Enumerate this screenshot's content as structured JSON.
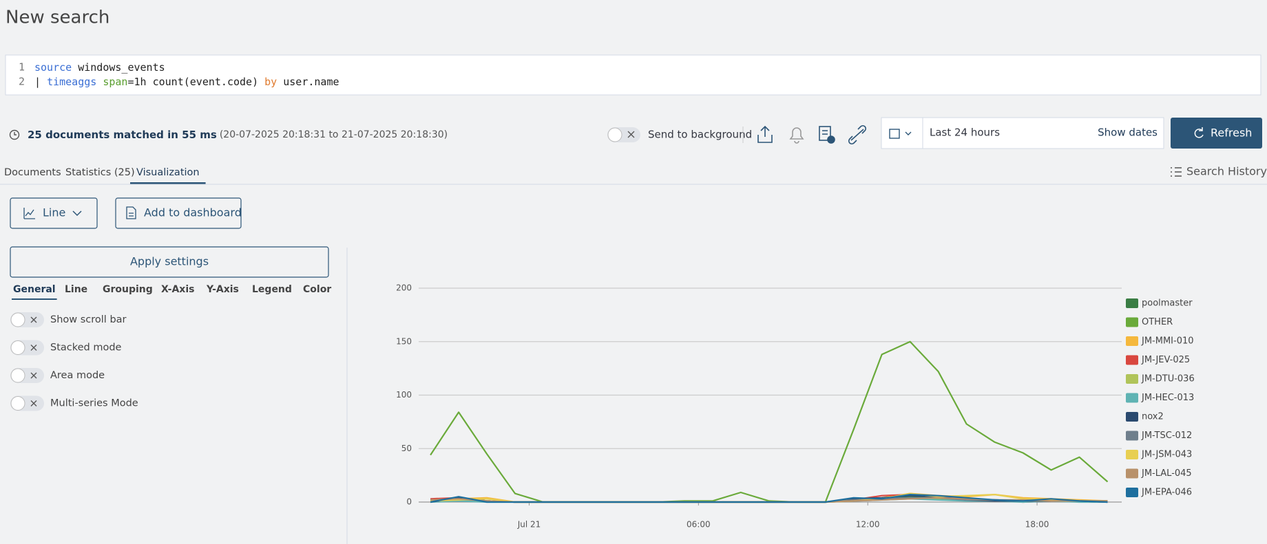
{
  "header": {
    "title": "New search"
  },
  "query": {
    "lines": [
      {
        "number": "1",
        "tokens": [
          {
            "text": "source",
            "kind": "keyword"
          },
          {
            "text": " windows_events",
            "kind": "plain"
          }
        ]
      },
      {
        "number": "2",
        "tokens": [
          {
            "text": "| ",
            "kind": "plain"
          },
          {
            "text": "timeaggs",
            "kind": "keyword"
          },
          {
            "text": " ",
            "kind": "plain"
          },
          {
            "text": "span",
            "kind": "param"
          },
          {
            "text": "=1h count(event.code) ",
            "kind": "plain"
          },
          {
            "text": "by",
            "kind": "operator"
          },
          {
            "text": " user.name",
            "kind": "plain"
          }
        ]
      }
    ]
  },
  "status": {
    "summary": "25 documents matched in 55 ms",
    "range": "(20-07-2025 20:18:31 to 21-07-2025 20:18:30)"
  },
  "toolbar": {
    "background_toggle": "Send to background",
    "time_range": "Last 24 hours",
    "show_dates": "Show dates",
    "refresh": "Refresh"
  },
  "tabs": {
    "items": [
      "Documents",
      "Statistics (25)",
      "Visualization"
    ],
    "active": 2,
    "history": "Search History"
  },
  "actions": {
    "chart_type": "Line",
    "add_to_dashboard": "Add to dashboard"
  },
  "settings": {
    "apply": "Apply settings",
    "tabs": [
      "General",
      "Line",
      "Grouping",
      "X-Axis",
      "Y-Axis",
      "Legend",
      "Color"
    ],
    "active_tab": 0,
    "toggles": [
      "Show scroll bar",
      "Stacked mode",
      "Area mode",
      "Multi-series Mode"
    ]
  },
  "chart_data": {
    "type": "line",
    "x": [
      "2025-07-20T20:30",
      "2025-07-20T21:30",
      "2025-07-20T22:30",
      "2025-07-20T23:30",
      "2025-07-21T00:30",
      "2025-07-21T01:30",
      "2025-07-21T02:30",
      "2025-07-21T03:30",
      "2025-07-21T04:30",
      "2025-07-21T05:30",
      "2025-07-21T06:30",
      "2025-07-21T07:30",
      "2025-07-21T08:30",
      "2025-07-21T09:30",
      "2025-07-21T10:30",
      "2025-07-21T11:30",
      "2025-07-21T12:30",
      "2025-07-21T13:30",
      "2025-07-21T14:30",
      "2025-07-21T15:30",
      "2025-07-21T16:30",
      "2025-07-21T17:30",
      "2025-07-21T18:30",
      "2025-07-21T19:30",
      "2025-07-21T20:30"
    ],
    "xlim": [
      "2025-07-20T20:05",
      "2025-07-21T21:00"
    ],
    "xticks": [
      {
        "value": "2025-07-21T00:00",
        "label": "Jul 21"
      },
      {
        "value": "2025-07-21T06:00",
        "label": "06:00"
      },
      {
        "value": "2025-07-21T12:00",
        "label": "12:00"
      },
      {
        "value": "2025-07-21T18:00",
        "label": "18:00"
      }
    ],
    "ylim": [
      0,
      200
    ],
    "yticks": [
      0,
      50,
      100,
      150,
      200
    ],
    "grid": true,
    "legend": "right",
    "series": [
      {
        "name": "poolmaster",
        "color": "#3a7d44",
        "values": [
          2,
          4,
          1,
          0,
          0,
          0,
          0,
          0,
          0,
          0,
          0,
          0,
          0,
          0,
          0,
          2,
          3,
          5,
          4,
          3,
          2,
          1,
          2,
          1,
          1
        ]
      },
      {
        "name": "OTHER",
        "color": "#6aaa3a",
        "values": [
          44,
          84,
          45,
          8,
          0,
          0,
          0,
          0,
          0,
          1,
          1,
          9,
          1,
          0,
          0,
          68,
          138,
          150,
          122,
          73,
          56,
          46,
          30,
          42,
          19
        ]
      },
      {
        "name": "JM-MMI-010",
        "color": "#f5b83d",
        "values": [
          1,
          3,
          4,
          0,
          0,
          0,
          0,
          0,
          0,
          0,
          0,
          0,
          0,
          0,
          0,
          1,
          4,
          8,
          6,
          5,
          7,
          4,
          3,
          2,
          1
        ]
      },
      {
        "name": "JM-JEV-025",
        "color": "#d9473f",
        "values": [
          3,
          4,
          1,
          0,
          0,
          0,
          0,
          0,
          0,
          0,
          0,
          0,
          0,
          0,
          0,
          2,
          6,
          7,
          5,
          3,
          2,
          0,
          1,
          1,
          0
        ]
      },
      {
        "name": "JM-DTU-036",
        "color": "#b0c45a",
        "values": [
          1,
          2,
          1,
          0,
          0,
          0,
          0,
          0,
          0,
          0,
          0,
          0,
          0,
          0,
          0,
          1,
          3,
          4,
          3,
          2,
          1,
          1,
          2,
          1,
          1
        ]
      },
      {
        "name": "JM-HEC-013",
        "color": "#5fb3b3",
        "values": [
          0,
          1,
          0,
          0,
          0,
          0,
          0,
          0,
          0,
          0,
          0,
          0,
          0,
          0,
          0,
          1,
          2,
          3,
          2,
          1,
          1,
          0,
          1,
          0,
          0
        ]
      },
      {
        "name": "nox2",
        "color": "#2b4a6f",
        "values": [
          0,
          4,
          1,
          0,
          0,
          0,
          0,
          0,
          0,
          0,
          0,
          0,
          0,
          0,
          0,
          3,
          4,
          6,
          5,
          2,
          1,
          1,
          1,
          1,
          0
        ]
      },
      {
        "name": "JM-TSC-012",
        "color": "#6f7f8c",
        "values": [
          2,
          3,
          1,
          0,
          0,
          0,
          0,
          0,
          0,
          0,
          0,
          0,
          0,
          0,
          0,
          2,
          3,
          4,
          4,
          2,
          2,
          1,
          2,
          1,
          1
        ]
      },
      {
        "name": "JM-JSM-043",
        "color": "#e8cf52",
        "values": [
          1,
          2,
          3,
          0,
          0,
          0,
          0,
          0,
          0,
          0,
          0,
          0,
          0,
          0,
          0,
          1,
          3,
          8,
          5,
          6,
          7,
          3,
          2,
          1,
          1
        ]
      },
      {
        "name": "JM-LAL-045",
        "color": "#b8916a",
        "values": [
          2,
          3,
          1,
          0,
          0,
          0,
          0,
          0,
          0,
          0,
          0,
          0,
          0,
          0,
          0,
          1,
          2,
          3,
          4,
          3,
          2,
          2,
          1,
          1,
          1
        ]
      },
      {
        "name": "JM-EPA-046",
        "color": "#1e6f9e",
        "values": [
          0,
          5,
          0,
          0,
          0,
          0,
          0,
          0,
          0,
          0,
          0,
          0,
          0,
          0,
          0,
          4,
          3,
          7,
          6,
          4,
          2,
          1,
          3,
          1,
          0
        ]
      }
    ]
  }
}
